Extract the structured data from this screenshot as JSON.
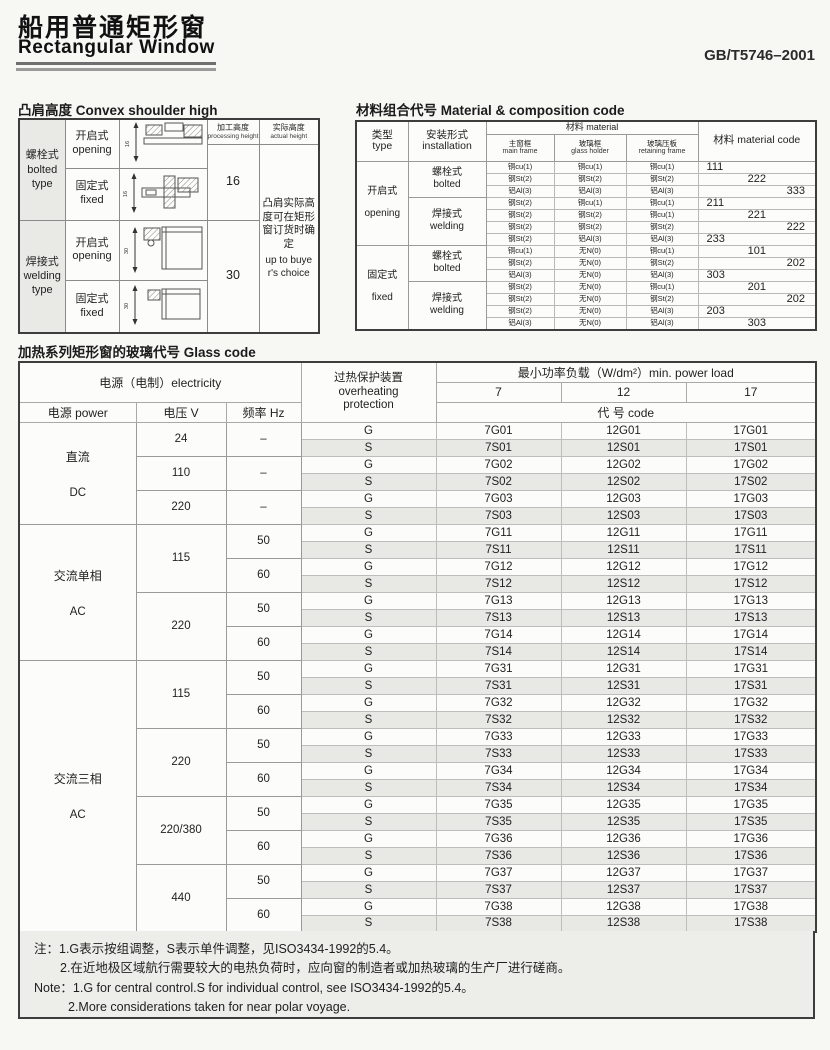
{
  "header": {
    "title_cn": "船用普通矩形窗",
    "title_en": "Rectangular Window",
    "standard": "GB/T5746–2001"
  },
  "convex_table": {
    "title": "凸肩高度 Convex shoulder high",
    "type_groups": [
      {
        "cn": "螺栓式",
        "en1": "bolted",
        "en2": "type"
      },
      {
        "cn": "焊接式",
        "en1": "welding",
        "en2": "type"
      }
    ],
    "open_fixed": [
      {
        "cn": "开启式",
        "en": "opening"
      },
      {
        "cn": "固定式",
        "en": "fixed"
      },
      {
        "cn": "开启式",
        "en": "opening"
      },
      {
        "cn": "固定式",
        "en": "fixed"
      }
    ],
    "processing_header_cn": "加工高度",
    "processing_header_en": "processing height",
    "actual_header_cn": "实际高度",
    "actual_header_en": "actual height",
    "processing_values": [
      "16",
      "30"
    ],
    "actual_note_cn": "凸肩实际高度可在矩形窗订货时确定",
    "actual_note_en": "up to buyer's choice",
    "diagram_icons": [
      "bolted-opening-cross-section",
      "bolted-fixed-cross-section",
      "welding-opening-cross-section",
      "welding-fixed-cross-section"
    ]
  },
  "material_table": {
    "title": "材料组合代号 Material & composition code",
    "col_type_cn": "类型",
    "col_type_en": "type",
    "col_install_cn": "安装形式",
    "col_install_en": "installation",
    "col_material": "材料 material",
    "col_main_cn": "主窗框",
    "col_main_en": "main frame",
    "col_holder_cn": "玻璃框",
    "col_holder_en": "glass holder",
    "col_retaining_cn": "玻璃压板",
    "col_retaining_en": "retaining frame",
    "col_code": "材料 material code",
    "type_groups": [
      {
        "cn": "开启式",
        "en": "opening",
        "rows": 7
      },
      {
        "cn": "固定式",
        "en": "fixed",
        "rows": 7
      }
    ],
    "install_groups": [
      {
        "cn": "螺栓式",
        "en": "bolted",
        "rows": 3
      },
      {
        "cn": "焊接式",
        "en": "welding",
        "rows": 4
      },
      {
        "cn": "螺栓式",
        "en": "bolted",
        "rows": 3
      },
      {
        "cn": "焊接式",
        "en": "welding",
        "rows": 4
      }
    ],
    "rows": [
      {
        "main": "铜cu(1)",
        "holder": "铜cu(1)",
        "retaining": "铜cu(1)",
        "code": "111",
        "align": "l"
      },
      {
        "main": "钢St(2)",
        "holder": "钢St(2)",
        "retaining": "钢St(2)",
        "code": "222",
        "align": "c"
      },
      {
        "main": "铝Al(3)",
        "holder": "铝Al(3)",
        "retaining": "铝Al(3)",
        "code": "333",
        "align": "r"
      },
      {
        "main": "钢St(2)",
        "holder": "铜cu(1)",
        "retaining": "铜cu(1)",
        "code": "211",
        "align": "l"
      },
      {
        "main": "钢St(2)",
        "holder": "钢St(2)",
        "retaining": "铜cu(1)",
        "code": "221",
        "align": "c"
      },
      {
        "main": "钢St(2)",
        "holder": "钢St(2)",
        "retaining": "钢St(2)",
        "code": "222",
        "align": "r"
      },
      {
        "main": "钢St(2)",
        "holder": "铝Al(3)",
        "retaining": "铝Al(3)",
        "code": "233",
        "align": "l"
      },
      {
        "main": "铜cu(1)",
        "holder": "无N(0)",
        "retaining": "铜cu(1)",
        "code": "101",
        "align": "c"
      },
      {
        "main": "钢St(2)",
        "holder": "无N(0)",
        "retaining": "钢St(2)",
        "code": "202",
        "align": "r"
      },
      {
        "main": "铝Al(3)",
        "holder": "无N(0)",
        "retaining": "铝Al(3)",
        "code": "303",
        "align": "l"
      },
      {
        "main": "钢St(2)",
        "holder": "无N(0)",
        "retaining": "铜cu(1)",
        "code": "201",
        "align": "c"
      },
      {
        "main": "钢St(2)",
        "holder": "无N(0)",
        "retaining": "钢St(2)",
        "code": "202",
        "align": "r"
      },
      {
        "main": "钢St(2)",
        "holder": "无N(0)",
        "retaining": "铝Al(3)",
        "code": "203",
        "align": "l"
      },
      {
        "main": "铝Al(3)",
        "holder": "无N(0)",
        "retaining": "铝Al(3)",
        "code": "303",
        "align": "c"
      }
    ]
  },
  "glass_table": {
    "title": "加热系列矩形窗的玻璃代号  Glass code",
    "hdr_electricity": "电源（电制）electricity",
    "hdr_protection_cn": "过热保护装置",
    "hdr_protection_en1": "overheating",
    "hdr_protection_en2": "protection",
    "hdr_power_load": "最小功率负载（W/dm²）min. power load",
    "hdr_loads": [
      "7",
      "12",
      "17"
    ],
    "hdr_code": "代 号 code",
    "hdr_power": "电源 power",
    "hdr_voltage": "电压 V",
    "hdr_freq": "频率 Hz",
    "power_groups": [
      {
        "cn": "直流",
        "en": "DC",
        "rows": 6
      },
      {
        "cn": "交流单相",
        "en": "AC",
        "rows": 8
      },
      {
        "cn": "交流三相",
        "en": "AC",
        "rows": 16
      }
    ],
    "voltage_groups": [
      {
        "label": "24",
        "rows": 2
      },
      {
        "label": "110",
        "rows": 2
      },
      {
        "label": "220",
        "rows": 2
      },
      {
        "label": "115",
        "rows": 4
      },
      {
        "label": "220",
        "rows": 4
      },
      {
        "label": "115",
        "rows": 4
      },
      {
        "label": "220",
        "rows": 4
      },
      {
        "label": "220/380",
        "rows": 4
      },
      {
        "label": "440",
        "rows": 4
      }
    ],
    "freq_groups": [
      {
        "label": "–",
        "rows": 2
      },
      {
        "label": "–",
        "rows": 2
      },
      {
        "label": "–",
        "rows": 2
      },
      {
        "label": "50",
        "rows": 2
      },
      {
        "label": "60",
        "rows": 2
      },
      {
        "label": "50",
        "rows": 2
      },
      {
        "label": "60",
        "rows": 2
      },
      {
        "label": "50",
        "rows": 2
      },
      {
        "label": "60",
        "rows": 2
      },
      {
        "label": "50",
        "rows": 2
      },
      {
        "label": "60",
        "rows": 2
      },
      {
        "label": "50",
        "rows": 2
      },
      {
        "label": "60",
        "rows": 2
      },
      {
        "label": "50",
        "rows": 2
      },
      {
        "label": "60",
        "rows": 2
      }
    ],
    "rows": [
      {
        "p": "G",
        "c7": "7G01",
        "c12": "12G01",
        "c17": "17G01",
        "shaded": false
      },
      {
        "p": "S",
        "c7": "7S01",
        "c12": "12S01",
        "c17": "17S01",
        "shaded": true
      },
      {
        "p": "G",
        "c7": "7G02",
        "c12": "12G02",
        "c17": "17G02",
        "shaded": false
      },
      {
        "p": "S",
        "c7": "7S02",
        "c12": "12S02",
        "c17": "17S02",
        "shaded": true
      },
      {
        "p": "G",
        "c7": "7G03",
        "c12": "12G03",
        "c17": "17G03",
        "shaded": false
      },
      {
        "p": "S",
        "c7": "7S03",
        "c12": "12S03",
        "c17": "17S03",
        "shaded": true
      },
      {
        "p": "G",
        "c7": "7G11",
        "c12": "12G11",
        "c17": "17G11",
        "shaded": false
      },
      {
        "p": "S",
        "c7": "7S11",
        "c12": "12S11",
        "c17": "17S11",
        "shaded": true
      },
      {
        "p": "G",
        "c7": "7G12",
        "c12": "12G12",
        "c17": "17G12",
        "shaded": false
      },
      {
        "p": "S",
        "c7": "7S12",
        "c12": "12S12",
        "c17": "17S12",
        "shaded": true
      },
      {
        "p": "G",
        "c7": "7G13",
        "c12": "12G13",
        "c17": "17G13",
        "shaded": false
      },
      {
        "p": "S",
        "c7": "7S13",
        "c12": "12S13",
        "c17": "17S13",
        "shaded": true
      },
      {
        "p": "G",
        "c7": "7G14",
        "c12": "12G14",
        "c17": "17G14",
        "shaded": false
      },
      {
        "p": "S",
        "c7": "7S14",
        "c12": "12S14",
        "c17": "17S14",
        "shaded": true
      },
      {
        "p": "G",
        "c7": "7G31",
        "c12": "12G31",
        "c17": "17G31",
        "shaded": false
      },
      {
        "p": "S",
        "c7": "7S31",
        "c12": "12S31",
        "c17": "17S31",
        "shaded": true
      },
      {
        "p": "G",
        "c7": "7G32",
        "c12": "12G32",
        "c17": "17G32",
        "shaded": false
      },
      {
        "p": "S",
        "c7": "7S32",
        "c12": "12S32",
        "c17": "17S32",
        "shaded": true
      },
      {
        "p": "G",
        "c7": "7G33",
        "c12": "12G33",
        "c17": "17G33",
        "shaded": false
      },
      {
        "p": "S",
        "c7": "7S33",
        "c12": "12S33",
        "c17": "17S33",
        "shaded": true
      },
      {
        "p": "G",
        "c7": "7G34",
        "c12": "12G34",
        "c17": "17G34",
        "shaded": false
      },
      {
        "p": "S",
        "c7": "7S34",
        "c12": "12S34",
        "c17": "17S34",
        "shaded": true
      },
      {
        "p": "G",
        "c7": "7G35",
        "c12": "12G35",
        "c17": "17G35",
        "shaded": false
      },
      {
        "p": "S",
        "c7": "7S35",
        "c12": "12S35",
        "c17": "17S35",
        "shaded": true
      },
      {
        "p": "G",
        "c7": "7G36",
        "c12": "12G36",
        "c17": "17G36",
        "shaded": false
      },
      {
        "p": "S",
        "c7": "7S36",
        "c12": "12S36",
        "c17": "17S36",
        "shaded": true
      },
      {
        "p": "G",
        "c7": "7G37",
        "c12": "12G37",
        "c17": "17G37",
        "shaded": false
      },
      {
        "p": "S",
        "c7": "7S37",
        "c12": "12S37",
        "c17": "17S37",
        "shaded": true
      },
      {
        "p": "G",
        "c7": "7G38",
        "c12": "12G38",
        "c17": "17G38",
        "shaded": false
      },
      {
        "p": "S",
        "c7": "7S38",
        "c12": "12S38",
        "c17": "17S38",
        "shaded": true
      }
    ]
  },
  "notes": {
    "cn1": "注：1.G表示按组调整，S表示单件调整，见ISO3434-1992的5.4。",
    "cn2": "2.在近地极区域航行需要较大的电热负荷时，应向窗的制造者或加热玻璃的生产厂进行磋商。",
    "en1": "Note：1.G for central control.S for individual control, see ISO3434-1992的5.4。",
    "en2": "2.More considerations taken for near polar voyage."
  }
}
